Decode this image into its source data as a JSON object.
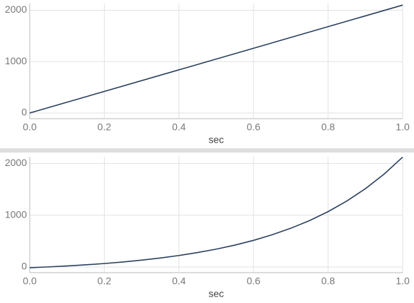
{
  "chart_data": [
    {
      "type": "line",
      "x_label": "sec",
      "x": [
        0,
        1
      ],
      "series": [
        {
          "color": "#2a3f5f",
          "values": [
            0,
            2100
          ]
        }
      ],
      "xlim": [
        0,
        1
      ],
      "ylim": [
        -110,
        2130
      ],
      "xticks": [
        {
          "value": 0,
          "label": "0.0"
        },
        0.2,
        0.4,
        0.6,
        0.8,
        {
          "value": 1,
          "label": "1.0"
        }
      ],
      "yticks": [
        0,
        1000,
        2000
      ],
      "grid": true
    },
    {
      "type": "line",
      "x_label": "sec",
      "x": [
        0,
        0.05,
        0.1,
        0.15,
        0.2,
        0.25,
        0.3,
        0.35,
        0.4,
        0.45,
        0.5,
        0.55,
        0.6,
        0.65,
        0.7,
        0.75,
        0.8,
        0.85,
        0.9,
        0.95,
        1
      ],
      "series": [
        {
          "color": "#2a3f5f",
          "values": [
            -15,
            1,
            19,
            41,
            66,
            96,
            132,
            173,
            221,
            278,
            344,
            422,
            514,
            622,
            748,
            896,
            1070,
            1274,
            1513,
            1794,
            2124
          ]
        }
      ],
      "xlim": [
        0,
        1
      ],
      "ylim": [
        -110,
        2130
      ],
      "xticks": [
        {
          "value": 0,
          "label": "0.0"
        },
        0.2,
        0.4,
        0.6,
        0.8,
        {
          "value": 1,
          "label": "1.0"
        }
      ],
      "yticks": [
        0,
        1000,
        2000
      ],
      "grid": true
    }
  ]
}
